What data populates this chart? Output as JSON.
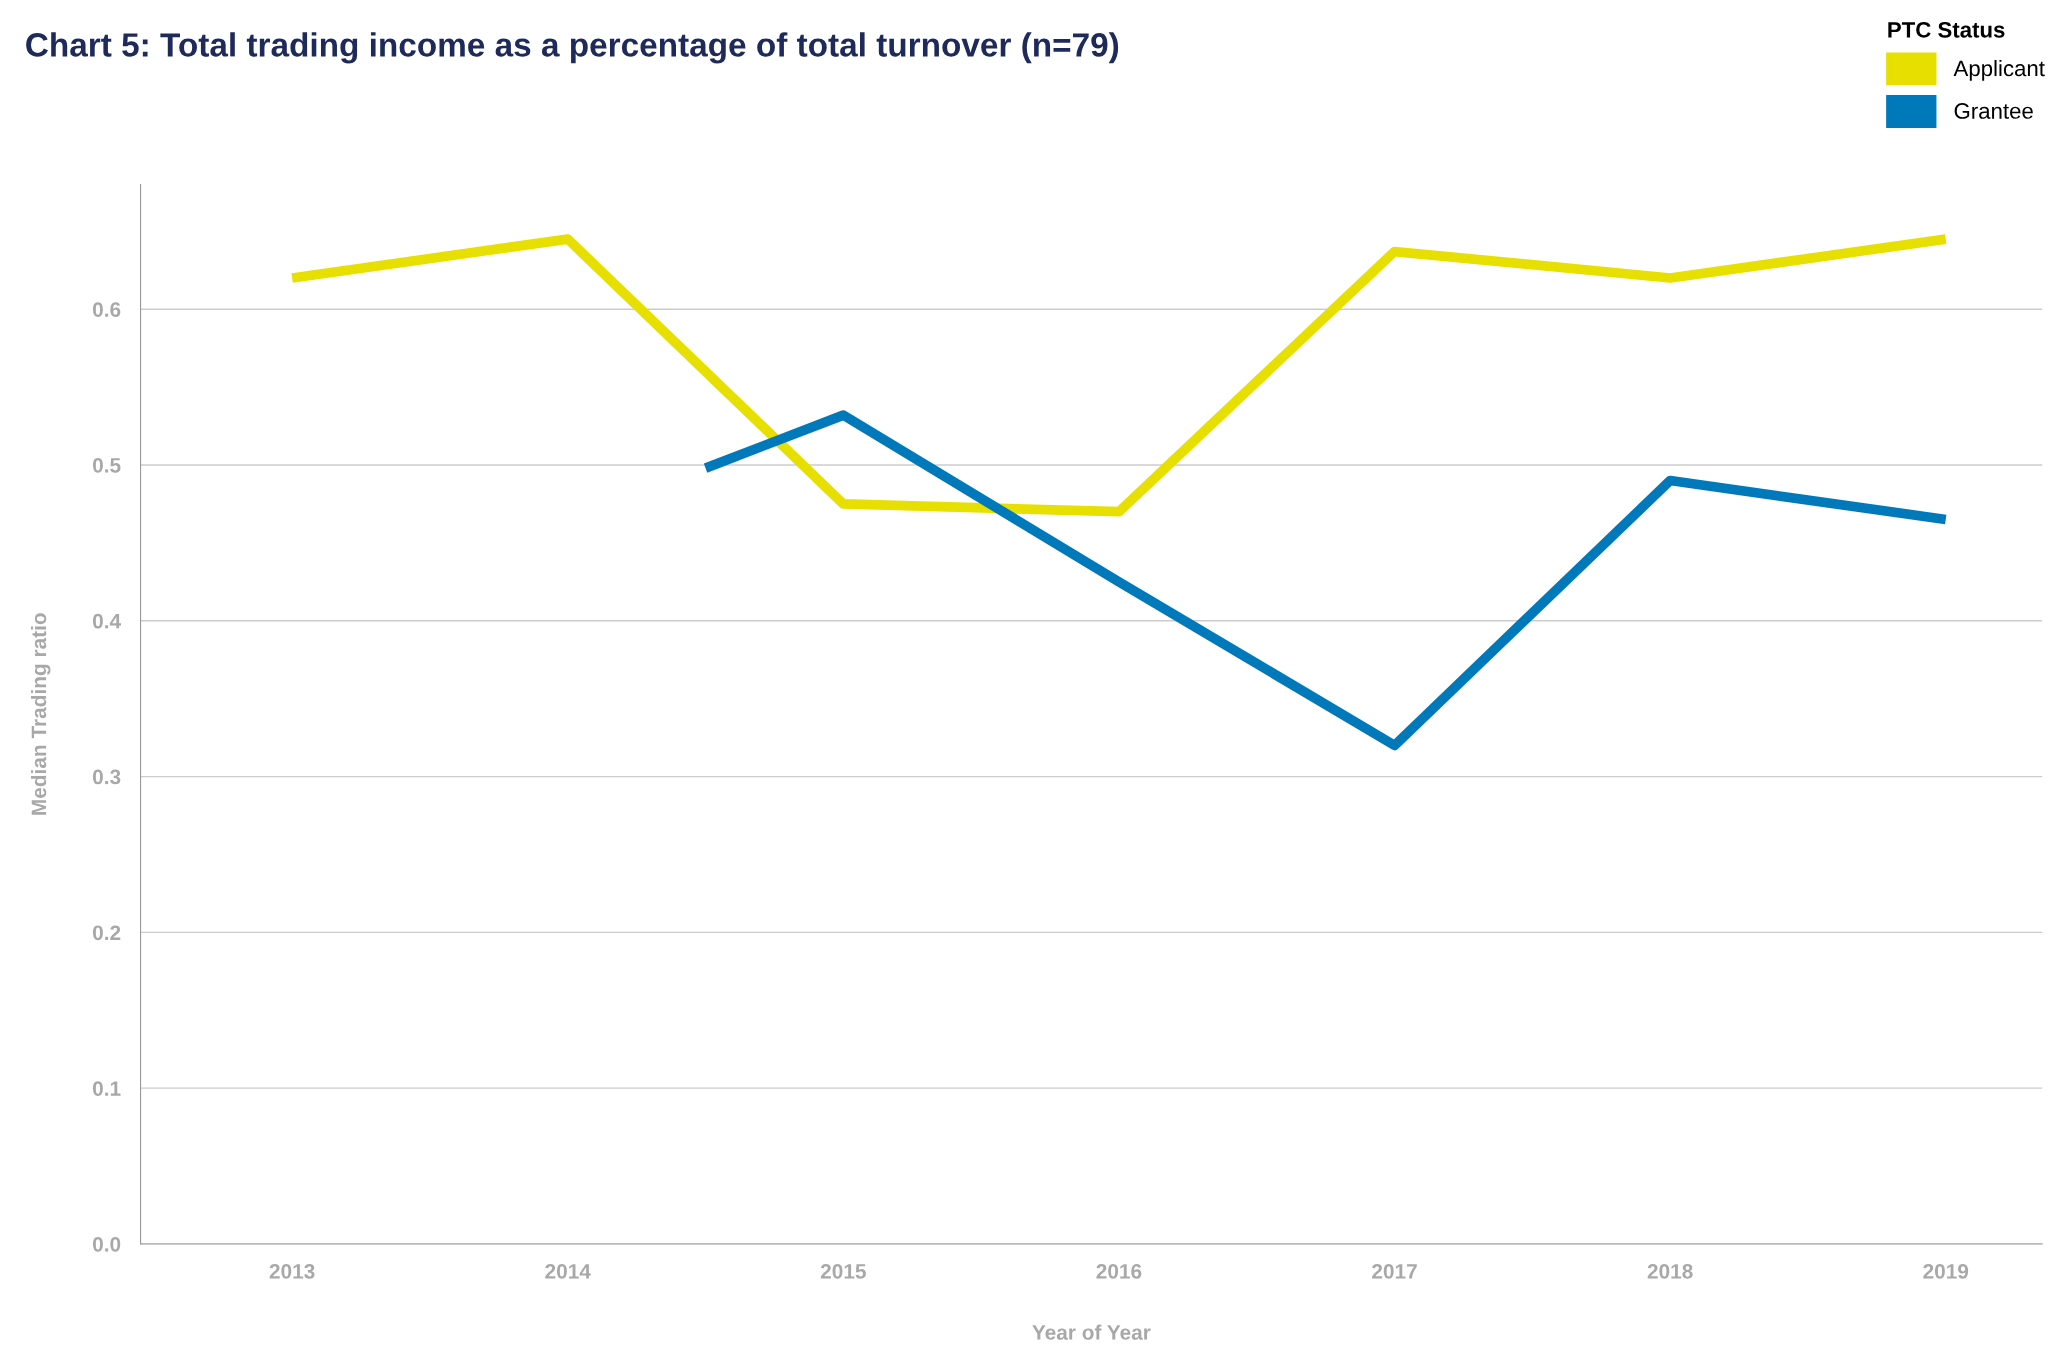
{
  "chart_data": {
    "type": "line",
    "title": "Chart 5: Total trading income as a percentage of total turnover (n=79)",
    "xlabel": "Year of Year",
    "ylabel": "Median Trading ratio",
    "legend_title": "PTC Status",
    "legend": "top right",
    "grid": "y",
    "marker": "none",
    "line_style": "solid",
    "xlim": [
      2012.45,
      2019.35
    ],
    "xticks": [
      2013,
      2014,
      2015,
      2016,
      2017,
      2018,
      2019
    ],
    "ylim": [
      0,
      0.68
    ],
    "yticks": [
      {
        "value": 0,
        "label": "0.0"
      },
      {
        "value": 0.1,
        "label": "0.1"
      },
      {
        "value": 0.2,
        "label": "0.2"
      },
      {
        "value": 0.3,
        "label": "0.3"
      },
      {
        "value": 0.4,
        "label": "0.4"
      },
      {
        "value": 0.5,
        "label": "0.5"
      },
      {
        "value": 0.6,
        "label": "0.6"
      }
    ],
    "series": [
      {
        "name": "Applicant",
        "color": "#e6df00",
        "x": [
          2013,
          2014,
          2015,
          2016,
          2017,
          2018,
          2019
        ],
        "values": [
          0.62,
          0.645,
          0.475,
          0.47,
          0.637,
          0.62,
          0.645
        ]
      },
      {
        "name": "Grantee",
        "color": "#0079bb",
        "x": [
          2014.5,
          2015,
          2016,
          2017,
          2018,
          2019
        ],
        "values": [
          0.498,
          0.532,
          0.425,
          0.32,
          0.49,
          0.465
        ]
      }
    ]
  }
}
